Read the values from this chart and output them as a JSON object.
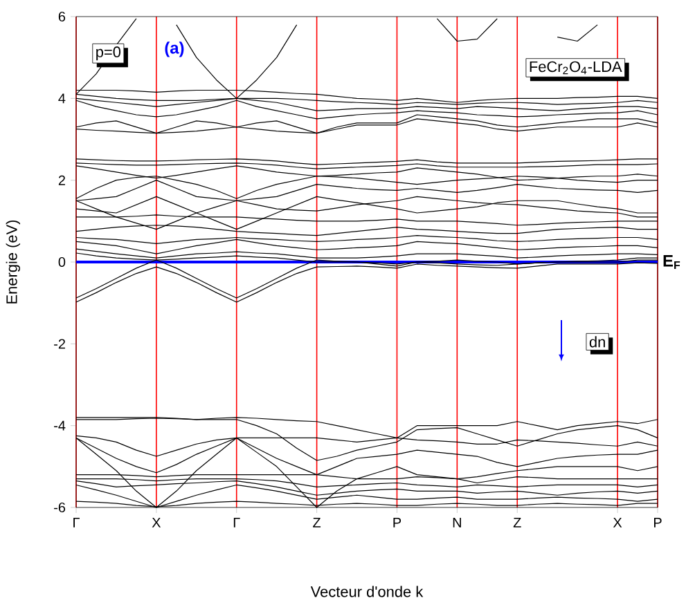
{
  "chart_data": {
    "type": "line",
    "xlabel": "Vecteur d'onde k",
    "ylabel": "Energie (eV)",
    "annotations": [
      "p=0",
      "(a)",
      "FeCr$_{2}$O$_{4}$-LDA",
      "dn"
    ],
    "categories": [
      "Γ",
      null,
      null,
      null,
      "X",
      null,
      null,
      null,
      "Γ",
      null,
      null,
      null,
      "Z",
      null,
      null,
      null,
      "P",
      null,
      null,
      "N",
      null,
      null,
      "Z",
      null,
      null,
      null,
      null,
      "X",
      null,
      "P"
    ],
    "ylim": [
      -6,
      6
    ],
    "yticks": [
      -6,
      -4,
      -2,
      0,
      2,
      4,
      6
    ],
    "grid": "x",
    "marker": "none",
    "line_style": "solid",
    "ref_lines": [
      {
        "axis": "y",
        "value": 0,
        "label": "E$_{F}$",
        "color": "#0000ff"
      }
    ],
    "series": [
      {
        "color": "#000000",
        "values": [
          4.1,
          4.6,
          5.3,
          5.95,
          null,
          null,
          null,
          null,
          null,
          null,
          null,
          null,
          null,
          null,
          null,
          null,
          null,
          null,
          null,
          null,
          null,
          null,
          null,
          null,
          null,
          null,
          null,
          null,
          null,
          null
        ]
      },
      {
        "color": "#000000",
        "values": [
          null,
          null,
          null,
          null,
          null,
          5.8,
          5.0,
          4.45,
          4.0,
          4.45,
          5.0,
          5.8,
          null,
          null,
          null,
          null,
          null,
          null,
          null,
          null,
          null,
          null,
          null,
          null,
          null,
          null,
          null,
          null,
          null,
          null
        ]
      },
      {
        "color": "#000000",
        "values": [
          null,
          null,
          null,
          null,
          null,
          null,
          null,
          null,
          null,
          null,
          null,
          null,
          null,
          null,
          null,
          null,
          null,
          null,
          5.95,
          5.4,
          5.45,
          5.95,
          null,
          null,
          null,
          null,
          null,
          null,
          null,
          null
        ]
      },
      {
        "color": "#000000",
        "values": [
          null,
          null,
          null,
          null,
          null,
          null,
          null,
          null,
          null,
          null,
          null,
          null,
          null,
          null,
          null,
          null,
          null,
          null,
          null,
          null,
          null,
          null,
          null,
          null,
          5.5,
          5.4,
          5.8,
          null,
          null,
          null
        ]
      },
      {
        "color": "#000000",
        "values": [
          4.2,
          4.2,
          4.2,
          4.18,
          4.15,
          4.18,
          4.2,
          4.2,
          4.2,
          4.18,
          4.15,
          4.12,
          4.1,
          4.05,
          4.0,
          3.98,
          3.95,
          4.0,
          3.95,
          3.9,
          3.95,
          3.98,
          4.0,
          4.0,
          4.0,
          4.02,
          4.03,
          4.05,
          4.05,
          4.0
        ]
      },
      {
        "color": "#000000",
        "values": [
          4.1,
          4.05,
          4.0,
          3.97,
          3.95,
          3.95,
          3.95,
          3.98,
          4.0,
          4.0,
          4.0,
          3.98,
          3.95,
          3.92,
          3.9,
          3.88,
          3.85,
          3.9,
          3.88,
          3.85,
          3.88,
          3.9,
          3.9,
          3.88,
          3.85,
          3.87,
          3.88,
          3.9,
          3.95,
          3.9
        ]
      },
      {
        "color": "#000000",
        "values": [
          4.0,
          3.95,
          3.9,
          3.85,
          3.8,
          3.85,
          3.9,
          3.95,
          4.0,
          3.95,
          3.9,
          3.8,
          3.7,
          3.72,
          3.75,
          3.75,
          3.75,
          3.8,
          3.78,
          3.75,
          3.8,
          3.78,
          3.75,
          3.72,
          3.7,
          3.74,
          3.77,
          3.8,
          3.8,
          3.75
        ]
      },
      {
        "color": "#000000",
        "values": [
          3.95,
          3.8,
          3.7,
          3.6,
          3.55,
          3.6,
          3.7,
          3.8,
          3.95,
          3.8,
          3.7,
          3.6,
          3.5,
          3.55,
          3.6,
          3.63,
          3.65,
          3.7,
          3.67,
          3.65,
          3.6,
          3.58,
          3.55,
          3.57,
          3.6,
          3.62,
          3.64,
          3.65,
          3.7,
          3.6
        ]
      },
      {
        "color": "#000000",
        "values": [
          3.3,
          3.4,
          3.45,
          3.3,
          3.15,
          3.3,
          3.45,
          3.4,
          3.3,
          3.4,
          3.45,
          3.3,
          3.15,
          3.3,
          3.4,
          3.4,
          3.4,
          3.6,
          3.55,
          3.5,
          3.45,
          3.35,
          3.3,
          3.35,
          3.4,
          3.45,
          3.5,
          3.5,
          3.5,
          3.4
        ]
      },
      {
        "color": "#000000",
        "values": [
          3.25,
          3.22,
          3.2,
          3.17,
          3.15,
          3.17,
          3.2,
          3.25,
          3.3,
          3.25,
          3.2,
          3.17,
          3.15,
          3.25,
          3.35,
          3.35,
          3.35,
          3.5,
          3.45,
          3.4,
          3.35,
          3.25,
          3.2,
          3.25,
          3.3,
          3.3,
          3.3,
          3.3,
          3.4,
          3.3
        ]
      },
      {
        "color": "#000000",
        "values": [
          2.52,
          2.5,
          2.48,
          2.47,
          2.47,
          2.48,
          2.5,
          2.51,
          2.52,
          2.5,
          2.47,
          2.42,
          2.38,
          2.4,
          2.42,
          2.44,
          2.46,
          2.5,
          2.45,
          2.42,
          2.42,
          2.42,
          2.42,
          2.44,
          2.46,
          2.47,
          2.48,
          2.5,
          2.52,
          2.52
        ]
      },
      {
        "color": "#000000",
        "values": [
          2.42,
          2.4,
          2.38,
          2.37,
          2.37,
          2.38,
          2.4,
          2.41,
          2.42,
          2.4,
          2.37,
          2.32,
          2.28,
          2.3,
          2.32,
          2.34,
          2.36,
          2.4,
          2.35,
          2.32,
          2.32,
          2.32,
          2.32,
          2.33,
          2.34,
          2.36,
          2.38,
          2.38,
          2.38,
          2.4
        ]
      },
      {
        "color": "#000000",
        "values": [
          2.35,
          2.28,
          2.2,
          2.12,
          2.05,
          2.12,
          2.2,
          2.28,
          2.35,
          2.28,
          2.2,
          2.15,
          2.1,
          2.12,
          2.15,
          2.18,
          2.2,
          2.3,
          2.25,
          2.2,
          2.15,
          2.07,
          2.0,
          2.02,
          2.05,
          2.08,
          2.1,
          2.1,
          2.15,
          2.1
        ]
      },
      {
        "color": "#000000",
        "values": [
          1.55,
          1.8,
          2.0,
          2.07,
          2.1,
          2.0,
          1.9,
          1.75,
          1.55,
          1.75,
          1.9,
          2.0,
          2.1,
          2.08,
          2.05,
          2.0,
          1.95,
          1.9,
          1.95,
          2.0,
          2.03,
          2.06,
          2.1,
          2.08,
          2.05,
          2.0,
          1.97,
          1.95,
          2.0,
          2.0
        ]
      },
      {
        "color": "#000000",
        "values": [
          1.5,
          1.55,
          1.6,
          1.8,
          2.0,
          1.8,
          1.6,
          1.55,
          1.5,
          1.55,
          1.6,
          1.75,
          1.9,
          1.85,
          1.8,
          1.77,
          1.75,
          1.8,
          1.75,
          1.7,
          1.75,
          1.82,
          1.9,
          1.85,
          1.8,
          1.78,
          1.76,
          1.75,
          1.7,
          1.75
        ]
      },
      {
        "color": "#000000",
        "values": [
          1.5,
          1.3,
          1.1,
          0.95,
          0.8,
          1.0,
          1.2,
          1.35,
          1.5,
          1.4,
          1.3,
          1.27,
          1.25,
          1.32,
          1.4,
          1.45,
          1.5,
          1.6,
          1.55,
          1.5,
          1.45,
          1.42,
          1.4,
          1.35,
          1.3,
          1.25,
          1.22,
          1.2,
          1.1,
          1.1
        ]
      },
      {
        "color": "#000000",
        "values": [
          1.3,
          1.25,
          1.2,
          1.4,
          1.6,
          1.4,
          1.2,
          1.0,
          0.8,
          1.0,
          1.2,
          1.4,
          1.6,
          1.52,
          1.45,
          1.37,
          1.3,
          1.2,
          1.25,
          1.3,
          1.35,
          1.45,
          1.5,
          1.5,
          1.5,
          1.42,
          1.35,
          1.3,
          1.2,
          1.2
        ]
      },
      {
        "color": "#000000",
        "values": [
          1.1,
          1.1,
          1.1,
          1.12,
          1.15,
          1.12,
          1.1,
          1.1,
          1.1,
          1.07,
          1.05,
          1.02,
          1.0,
          1.0,
          1.0,
          1.02,
          1.05,
          1.0,
          1.0,
          1.0,
          0.97,
          0.94,
          0.9,
          0.92,
          0.95,
          0.97,
          0.98,
          1.0,
          1.0,
          1.0
        ]
      },
      {
        "color": "#000000",
        "values": [
          0.75,
          0.8,
          0.85,
          0.88,
          0.9,
          0.88,
          0.85,
          0.8,
          0.75,
          0.72,
          0.7,
          0.67,
          0.65,
          0.7,
          0.75,
          0.8,
          0.85,
          0.8,
          0.78,
          0.75,
          0.72,
          0.7,
          0.7,
          0.75,
          0.8,
          0.82,
          0.84,
          0.85,
          0.8,
          0.8
        ]
      },
      {
        "color": "#000000",
        "values": [
          0.6,
          0.57,
          0.55,
          0.5,
          0.45,
          0.5,
          0.55,
          0.57,
          0.6,
          0.57,
          0.55,
          0.52,
          0.5,
          0.52,
          0.55,
          0.57,
          0.6,
          0.65,
          0.62,
          0.6,
          0.57,
          0.52,
          0.5,
          0.52,
          0.55,
          0.57,
          0.58,
          0.6,
          0.6,
          0.55
        ]
      },
      {
        "color": "#000000",
        "values": [
          0.5,
          0.45,
          0.4,
          0.3,
          0.2,
          0.3,
          0.4,
          0.47,
          0.55,
          0.47,
          0.4,
          0.35,
          0.3,
          0.32,
          0.35,
          0.37,
          0.4,
          0.5,
          0.47,
          0.45,
          0.4,
          0.35,
          0.3,
          0.32,
          0.35,
          0.37,
          0.38,
          0.4,
          0.4,
          0.35
        ]
      },
      {
        "color": "#000000",
        "values": [
          0.32,
          0.26,
          0.2,
          0.15,
          0.1,
          0.15,
          0.2,
          0.22,
          0.25,
          0.22,
          0.2,
          0.15,
          0.1,
          0.1,
          0.1,
          0.12,
          0.15,
          0.2,
          0.2,
          0.2,
          0.17,
          0.14,
          0.1,
          0.12,
          0.15,
          0.17,
          0.18,
          0.2,
          0.2,
          0.18
        ]
      },
      {
        "color": "#000000",
        "values": [
          0.22,
          0.15,
          0.1,
          0.07,
          0.05,
          0.07,
          0.1,
          0.12,
          0.15,
          0.12,
          0.1,
          0.05,
          0.0,
          0.0,
          0.0,
          -0.02,
          -0.05,
          0.0,
          0.02,
          0.05,
          0.02,
          0.0,
          -0.05,
          -0.02,
          0.0,
          0.02,
          0.03,
          0.05,
          0.1,
          0.1
        ]
      },
      {
        "color": "#000000",
        "values": [
          -0.98,
          -0.75,
          -0.5,
          -0.28,
          -0.12,
          -0.28,
          -0.5,
          -0.75,
          -0.98,
          -0.75,
          -0.5,
          -0.28,
          -0.12,
          -0.11,
          -0.1,
          -0.12,
          -0.15,
          -0.05,
          -0.08,
          -0.1,
          -0.12,
          -0.14,
          -0.15,
          -0.1,
          -0.05,
          -0.05,
          -0.05,
          -0.05,
          -0.02,
          -0.03
        ]
      },
      {
        "color": "#000000",
        "values": [
          -0.88,
          -0.65,
          -0.4,
          -0.15,
          0.05,
          -0.15,
          -0.4,
          -0.65,
          -0.88,
          -0.65,
          -0.4,
          -0.15,
          0.05,
          0.02,
          0.0,
          -0.05,
          -0.1,
          0.0,
          -0.02,
          -0.05,
          -0.07,
          -0.08,
          -0.05,
          -0.02,
          0.0,
          0.0,
          0.0,
          0.0,
          0.05,
          0.05
        ]
      },
      {
        "color": "#000000",
        "values": [
          -3.8,
          -3.8,
          -3.8,
          -3.8,
          -3.8,
          -3.82,
          -3.85,
          -3.82,
          -3.8,
          -3.82,
          -3.85,
          -3.88,
          -3.9,
          -4.0,
          -4.1,
          -4.2,
          -4.3,
          -4.0,
          -4.0,
          -4.0,
          -4.0,
          -4.0,
          -3.9,
          -4.0,
          -4.1,
          -4.0,
          -3.95,
          -3.9,
          -3.95,
          -3.85
        ]
      },
      {
        "color": "#000000",
        "values": [
          -3.85,
          -3.85,
          -3.85,
          -3.83,
          -3.82,
          -3.83,
          -3.85,
          -3.85,
          -3.85,
          -4.0,
          -4.2,
          -4.55,
          -4.85,
          -4.75,
          -4.6,
          -4.5,
          -4.4,
          -4.1,
          -4.07,
          -4.05,
          -4.2,
          -4.35,
          -4.5,
          -4.35,
          -4.2,
          -4.1,
          -4.05,
          -4.0,
          -4.1,
          -4.3
        ]
      },
      {
        "color": "#000000",
        "values": [
          -4.25,
          -4.3,
          -4.4,
          -4.6,
          -4.75,
          -4.6,
          -4.45,
          -4.35,
          -4.3,
          -4.3,
          -4.3,
          -4.3,
          -4.3,
          -4.35,
          -4.4,
          -4.35,
          -4.3,
          -4.35,
          -4.37,
          -4.4,
          -4.45,
          -4.45,
          -4.35,
          -4.37,
          -4.4,
          -4.43,
          -4.47,
          -4.5,
          -4.4,
          -4.5
        ]
      },
      {
        "color": "#000000",
        "values": [
          -4.3,
          -4.55,
          -4.8,
          -5.0,
          -5.15,
          -4.95,
          -4.7,
          -4.5,
          -4.3,
          -4.55,
          -4.8,
          -5.0,
          -5.2,
          -5.0,
          -4.8,
          -4.75,
          -4.7,
          -4.6,
          -4.65,
          -4.7,
          -4.75,
          -4.9,
          -5.0,
          -4.9,
          -4.8,
          -4.75,
          -4.72,
          -4.7,
          -4.7,
          -4.6
        ]
      },
      {
        "color": "#000000",
        "values": [
          -4.3,
          -4.7,
          -5.1,
          -5.6,
          -6.0,
          -5.6,
          -5.1,
          -4.7,
          -4.3,
          -4.65,
          -5.0,
          -5.5,
          -6.0,
          -5.6,
          -5.3,
          -5.15,
          -5.0,
          -5.2,
          -5.25,
          -5.3,
          -5.25,
          -5.17,
          -5.1,
          -5.05,
          -5.0,
          -5.0,
          -5.0,
          -5.0,
          -5.1,
          -5.0
        ]
      },
      {
        "color": "#000000",
        "values": [
          -5.2,
          -5.2,
          -5.2,
          -5.22,
          -5.25,
          -5.22,
          -5.2,
          -5.2,
          -5.2,
          -5.2,
          -5.2,
          -5.2,
          -5.2,
          -5.25,
          -5.3,
          -5.3,
          -5.3,
          -5.25,
          -5.27,
          -5.3,
          -5.4,
          -5.32,
          -5.25,
          -5.27,
          -5.3,
          -5.3,
          -5.3,
          -5.3,
          -5.3,
          -5.3
        ]
      },
      {
        "color": "#000000",
        "values": [
          -5.3,
          -5.3,
          -5.3,
          -5.32,
          -5.35,
          -5.32,
          -5.3,
          -5.3,
          -5.3,
          -5.32,
          -5.35,
          -5.42,
          -5.5,
          -5.47,
          -5.45,
          -5.42,
          -5.4,
          -5.45,
          -5.47,
          -5.5,
          -5.45,
          -5.47,
          -5.5,
          -5.47,
          -5.45,
          -5.45,
          -5.45,
          -5.45,
          -5.5,
          -5.45
        ]
      },
      {
        "color": "#000000",
        "values": [
          -5.35,
          -5.42,
          -5.5,
          -5.47,
          -5.45,
          -5.42,
          -5.4,
          -5.37,
          -5.35,
          -5.42,
          -5.5,
          -5.6,
          -5.7,
          -5.65,
          -5.6,
          -5.57,
          -5.55,
          -5.6,
          -5.6,
          -5.6,
          -5.65,
          -5.62,
          -5.6,
          -5.65,
          -5.7,
          -5.65,
          -5.62,
          -5.6,
          -5.65,
          -5.6
        ]
      },
      {
        "color": "#000000",
        "values": [
          -5.45,
          -5.57,
          -5.7,
          -5.85,
          -6.0,
          -5.85,
          -5.7,
          -5.57,
          -5.45,
          -5.52,
          -5.6,
          -5.7,
          -5.8,
          -5.75,
          -5.7,
          -5.75,
          -5.8,
          -5.8,
          -5.77,
          -5.75,
          -5.8,
          -5.8,
          -5.8,
          -5.77,
          -5.75,
          -5.77,
          -5.78,
          -5.8,
          -5.85,
          -5.8
        ]
      },
      {
        "color": "#000000",
        "values": [
          -5.85,
          -5.87,
          -5.9,
          -5.95,
          -5.98,
          -5.95,
          -5.9,
          -5.87,
          -5.85,
          -5.87,
          -5.9,
          -5.92,
          -5.95,
          -5.92,
          -5.9,
          -5.92,
          -5.95,
          -5.95,
          -5.92,
          -5.9,
          -5.92,
          -5.95,
          -5.95,
          -5.92,
          -5.9,
          -5.92,
          -5.93,
          -5.95,
          -5.9,
          -5.9
        ]
      }
    ]
  }
}
